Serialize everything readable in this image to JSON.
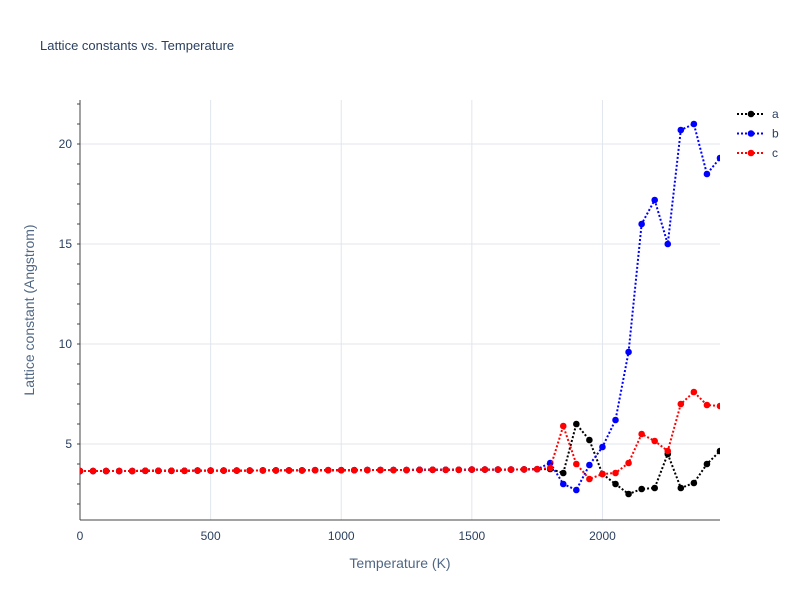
{
  "chart_data": {
    "type": "line",
    "title": "Lattice constants vs. Temperature",
    "xlabel": "Temperature (K)",
    "ylabel": "Lattice constant (Angstrom)",
    "xlim": [
      0,
      2450
    ],
    "ylim": [
      1.2,
      22.2
    ],
    "xticks": [
      0,
      500,
      1000,
      1500,
      2000
    ],
    "yticks": [
      5,
      10,
      15,
      20
    ],
    "grid": true,
    "legend_position": "top-right",
    "x": [
      0,
      50,
      100,
      150,
      200,
      250,
      300,
      350,
      400,
      450,
      500,
      550,
      600,
      650,
      700,
      750,
      800,
      850,
      900,
      950,
      1000,
      1050,
      1100,
      1150,
      1200,
      1250,
      1300,
      1350,
      1400,
      1450,
      1500,
      1550,
      1600,
      1650,
      1700,
      1750,
      1800,
      1850,
      1900,
      1950,
      2000,
      2050,
      2100,
      2150,
      2200,
      2250,
      2300,
      2350,
      2400,
      2450
    ],
    "series": [
      {
        "name": "a",
        "color": "#000000",
        "values": [
          3.65,
          3.65,
          3.65,
          3.65,
          3.65,
          3.66,
          3.66,
          3.66,
          3.66,
          3.67,
          3.67,
          3.67,
          3.67,
          3.67,
          3.68,
          3.68,
          3.68,
          3.68,
          3.69,
          3.69,
          3.69,
          3.69,
          3.7,
          3.7,
          3.7,
          3.7,
          3.71,
          3.71,
          3.71,
          3.71,
          3.72,
          3.72,
          3.72,
          3.72,
          3.73,
          3.74,
          3.75,
          3.55,
          6.0,
          5.2,
          3.5,
          3.0,
          2.5,
          2.75,
          2.8,
          4.5,
          2.8,
          3.05,
          4.0,
          4.65
        ]
      },
      {
        "name": "b",
        "color": "#0000ff",
        "values": [
          3.65,
          3.65,
          3.65,
          3.65,
          3.65,
          3.66,
          3.66,
          3.66,
          3.66,
          3.67,
          3.67,
          3.67,
          3.67,
          3.67,
          3.68,
          3.68,
          3.68,
          3.68,
          3.69,
          3.69,
          3.69,
          3.69,
          3.7,
          3.7,
          3.7,
          3.7,
          3.71,
          3.71,
          3.71,
          3.71,
          3.72,
          3.72,
          3.72,
          3.72,
          3.73,
          3.74,
          4.05,
          3.0,
          2.7,
          3.95,
          4.85,
          6.2,
          9.6,
          16.0,
          17.2,
          15.0,
          20.7,
          21.0,
          18.5,
          19.3
        ]
      },
      {
        "name": "c",
        "color": "#ff0000",
        "values": [
          3.65,
          3.65,
          3.65,
          3.65,
          3.65,
          3.66,
          3.66,
          3.66,
          3.66,
          3.67,
          3.67,
          3.67,
          3.67,
          3.67,
          3.68,
          3.68,
          3.68,
          3.68,
          3.69,
          3.69,
          3.69,
          3.69,
          3.7,
          3.7,
          3.7,
          3.7,
          3.71,
          3.71,
          3.71,
          3.71,
          3.72,
          3.72,
          3.72,
          3.72,
          3.73,
          3.74,
          3.8,
          5.9,
          4.0,
          3.25,
          3.5,
          3.55,
          4.05,
          5.5,
          5.15,
          4.65,
          7.0,
          7.6,
          6.95,
          6.9
        ]
      }
    ]
  }
}
